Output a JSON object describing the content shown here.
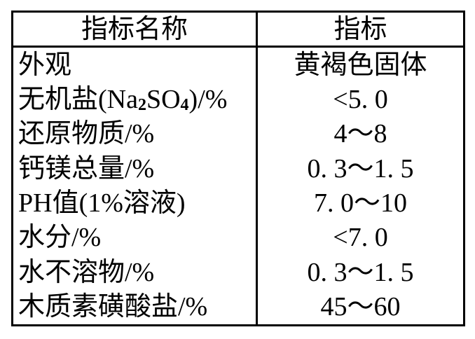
{
  "table": {
    "headers": {
      "name": "指标名称",
      "value": "指标"
    },
    "rows": [
      {
        "name": "外观",
        "value": "黄褐色固体"
      },
      {
        "name_parts": {
          "p0": "无机盐(Na",
          "sub1": "2",
          "p1": "SO",
          "sub2": "4",
          "p2": ")/%"
        },
        "value": "<5. 0"
      },
      {
        "name": "还原物质/%",
        "value": "4～8"
      },
      {
        "name": "钙镁总量/%",
        "value": "0. 3～1. 5"
      },
      {
        "name": "PH值(1%溶液)",
        "value": "7. 0～10"
      },
      {
        "name": "水分/%",
        "value": "<7. 0"
      },
      {
        "name": "水不溶物/%",
        "value": "0. 3～1. 5"
      },
      {
        "name": "木质素磺酸盐/%",
        "value": "45～60"
      }
    ],
    "colors": {
      "border": "#000000",
      "text": "#000000",
      "background": "#ffffff"
    }
  }
}
